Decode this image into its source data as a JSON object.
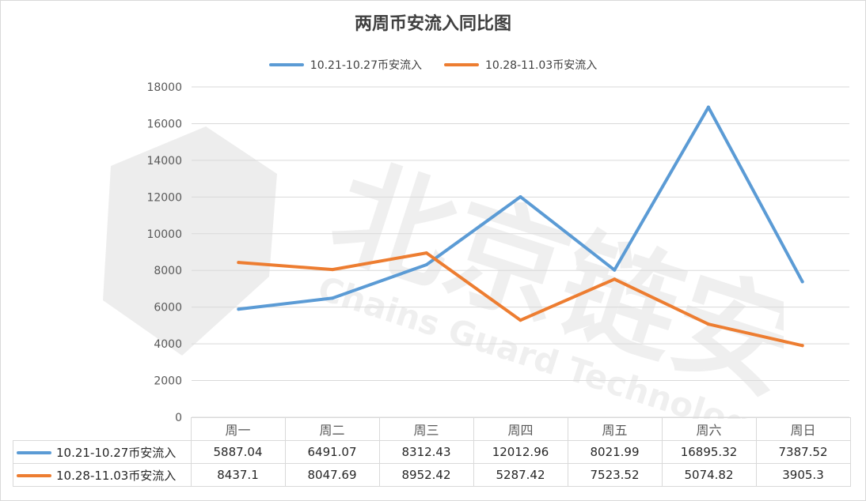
{
  "chart_data": {
    "type": "line",
    "title": "两周币安流入同比图",
    "categories": [
      "周一",
      "周二",
      "周三",
      "周四",
      "周五",
      "周六",
      "周日"
    ],
    "series": [
      {
        "name": "10.21-10.27币安流入",
        "color": "#5b9bd5",
        "values": [
          5887.04,
          6491.07,
          8312.43,
          12012.96,
          8021.99,
          16895.32,
          7387.52
        ]
      },
      {
        "name": "10.28-11.03币安流入",
        "color": "#ed7d31",
        "values": [
          8437.1,
          8047.69,
          8952.42,
          5287.42,
          7523.52,
          5074.82,
          3905.3
        ]
      }
    ],
    "ylim": [
      0,
      18000
    ],
    "yticks": [
      0,
      2000,
      4000,
      6000,
      8000,
      10000,
      12000,
      14000,
      16000,
      18000
    ],
    "grid": true,
    "legend_position": "top",
    "data_table": true
  },
  "watermark": {
    "main": "北京链安",
    "sub": "Chains Guard Technology"
  }
}
